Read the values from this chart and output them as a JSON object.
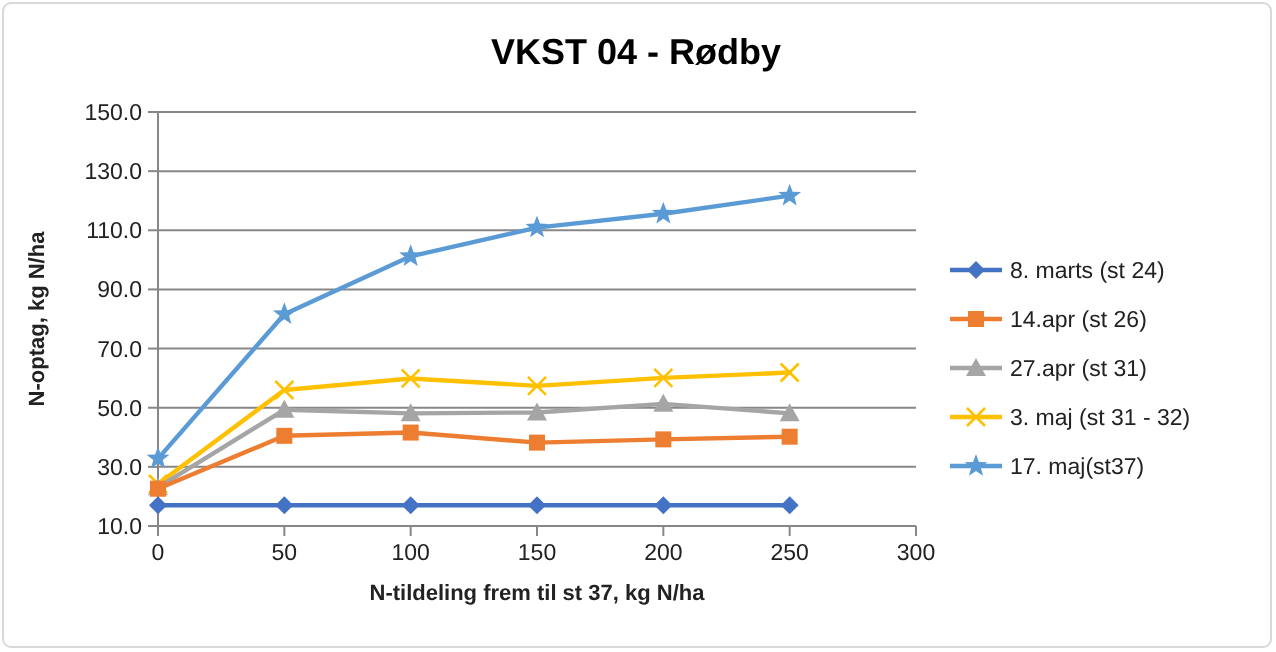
{
  "chart_data": {
    "type": "line",
    "title": "VKST 04 - Rødby",
    "xlabel": "N-tildeling frem til st 37, kg N/ha",
    "ylabel": "N-optag, kg N/ha",
    "x": [
      0,
      50,
      100,
      150,
      200,
      250
    ],
    "series": [
      {
        "name": "8. marts (st 24)",
        "color": "#4472c4",
        "marker": "diamond",
        "values": [
          17,
          17,
          17,
          17,
          17,
          17
        ]
      },
      {
        "name": "14.apr (st 26)",
        "color": "#ed7d31",
        "marker": "square",
        "values": [
          22.6,
          40.5,
          41.6,
          38.2,
          39.3,
          40.2
        ]
      },
      {
        "name": "27.apr (st 31)",
        "color": "#a5a5a5",
        "marker": "triangle",
        "values": [
          23.1,
          49.3,
          48.1,
          48.4,
          51.3,
          48.1
        ]
      },
      {
        "name": "3. maj (st 31 - 32)",
        "color": "#ffc000",
        "marker": "cross",
        "values": [
          24.2,
          56,
          59.9,
          57.4,
          60.1,
          61.9
        ]
      },
      {
        "name": "17. maj(st37)",
        "color": "#5b9bd5",
        "marker": "star",
        "values": [
          32.8,
          81.6,
          101.2,
          110.9,
          115.6,
          121.7
        ]
      }
    ],
    "xlim": [
      0,
      300
    ],
    "xticks": [
      0,
      50,
      100,
      150,
      200,
      250,
      300
    ],
    "ylim": [
      10,
      150
    ],
    "yticks": [
      {
        "value": 10,
        "label": "10.0"
      },
      {
        "value": 30,
        "label": "30.0"
      },
      {
        "value": 50,
        "label": "50.0"
      },
      {
        "value": 70,
        "label": "70.0"
      },
      {
        "value": 90,
        "label": "90.0"
      },
      {
        "value": 110,
        "label": "110.0"
      },
      {
        "value": 130,
        "label": "130.0"
      },
      {
        "value": 150,
        "label": "150.0"
      }
    ],
    "grid": "y",
    "legend": "right"
  }
}
